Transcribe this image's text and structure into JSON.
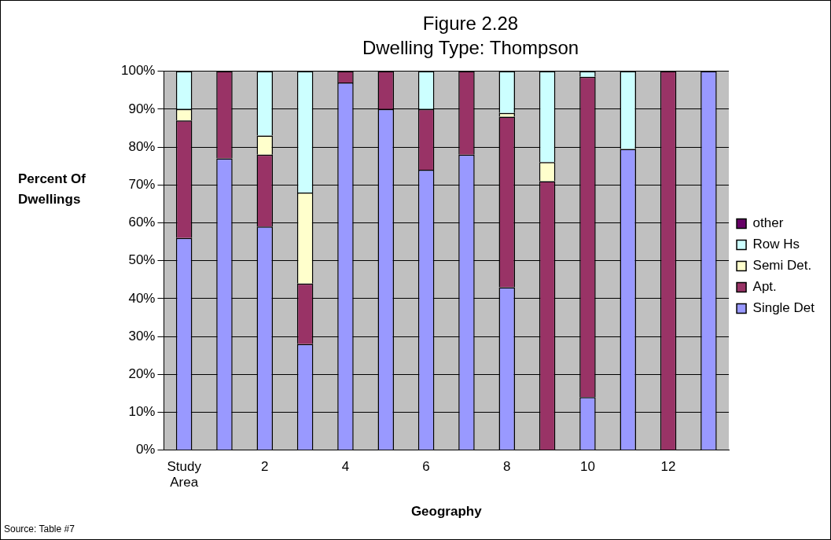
{
  "chart_data": {
    "type": "bar",
    "title": "Figure 2.28",
    "subtitle": "Dwelling Type: Thompson",
    "xlabel": "Geography",
    "ylabel": "Percent Of Dwellings",
    "annotations": [
      "Source: Table #7"
    ],
    "categories": [
      "Study Area",
      null,
      "2",
      null,
      "4",
      null,
      "6",
      null,
      "8",
      null,
      "10",
      null,
      "12",
      null
    ],
    "stacked": true,
    "series": [
      {
        "name": "Single Det",
        "color": "#9999ff",
        "values": [
          56,
          77,
          59,
          28,
          97,
          90,
          74,
          78,
          43,
          0,
          14,
          79.5,
          0,
          100
        ]
      },
      {
        "name": "Apt.",
        "color": "#993366",
        "values": [
          31,
          23,
          19,
          16,
          3,
          10,
          16,
          22,
          45,
          71,
          84.5,
          0,
          100,
          0
        ]
      },
      {
        "name": "Semi Det.",
        "color": "#ffffcc",
        "values": [
          3,
          0,
          5,
          24,
          0,
          0,
          0,
          0,
          1,
          5,
          0,
          0,
          0,
          0
        ]
      },
      {
        "name": "Row Hs",
        "color": "#ccffff",
        "values": [
          10,
          0,
          17,
          32,
          0,
          0,
          10,
          0,
          11,
          24,
          1.5,
          20.5,
          0,
          0
        ]
      },
      {
        "name": "other",
        "color": "#660066",
        "values": [
          0,
          0,
          0,
          0,
          0,
          0,
          0,
          0,
          0,
          0,
          0,
          0,
          0,
          0
        ]
      }
    ],
    "ylim": [
      0,
      100
    ],
    "yticks": [
      {
        "value": 0,
        "label": "0%"
      },
      {
        "value": 10,
        "label": "10%"
      },
      {
        "value": 20,
        "label": "20%"
      },
      {
        "value": 30,
        "label": "30%"
      },
      {
        "value": 40,
        "label": "40%"
      },
      {
        "value": 50,
        "label": "50%"
      },
      {
        "value": 60,
        "label": "60%"
      },
      {
        "value": 70,
        "label": "70%"
      },
      {
        "value": 80,
        "label": "80%"
      },
      {
        "value": 90,
        "label": "90%"
      },
      {
        "value": 100,
        "label": "100%"
      }
    ],
    "grid": "y",
    "legend": "right"
  }
}
